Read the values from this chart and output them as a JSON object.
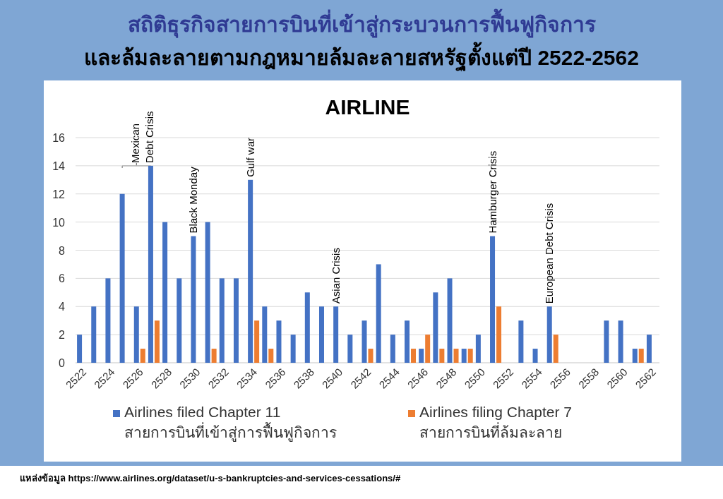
{
  "chart_data": {
    "type": "bar",
    "title": "สถิติธุรกิจสายการบินที่เข้าสู่กระบวนการฟื้นฟูกิจการ",
    "subtitle": "และล้มละลายตามกฎหมายล้มละลายสหรัฐตั้งแต่ปี 2522-2562",
    "categories": [
      "2522",
      null,
      "2524",
      null,
      "2526",
      null,
      "2528",
      null,
      "2530",
      null,
      "2532",
      null,
      "2534",
      null,
      "2536",
      null,
      "2538",
      null,
      "2540",
      null,
      "2542",
      null,
      "2544",
      null,
      "2546",
      null,
      "2548",
      null,
      "2550",
      null,
      "2552",
      null,
      "2554",
      null,
      "2556",
      null,
      "2558",
      null,
      "2560",
      null,
      "2562"
    ],
    "series": [
      {
        "name": "Airlines filed Chapter 11\nสายการบินที่เข้าสู่การฟื้นฟูกิจการ",
        "color": "#4472c4",
        "values": [
          2,
          4,
          6,
          12,
          4,
          14,
          10,
          6,
          9,
          10,
          6,
          6,
          13,
          4,
          3,
          2,
          5,
          4,
          4,
          2,
          3,
          7,
          2,
          3,
          1,
          5,
          6,
          1,
          2,
          9,
          0,
          3,
          1,
          4,
          0,
          0,
          0,
          3,
          3,
          1,
          2
        ]
      },
      {
        "name": "Airlines filing Chapter 7\nสายการบินที่ล้มละลาย",
        "color": "#ed7d31",
        "values": [
          0,
          0,
          0,
          0,
          1,
          3,
          0,
          0,
          0,
          1,
          0,
          0,
          3,
          1,
          0,
          0,
          0,
          0,
          0,
          0,
          1,
          0,
          0,
          1,
          2,
          1,
          1,
          1,
          0,
          4,
          0,
          0,
          0,
          2,
          0,
          0,
          0,
          0,
          0,
          1,
          0
        ]
      }
    ],
    "ylim": [
      0,
      16
    ],
    "yticks": [
      0,
      2,
      4,
      6,
      8,
      10,
      12,
      14,
      16
    ],
    "grid": "y",
    "legend": "bottom",
    "annotations": [
      "AIRLINE",
      "Mexican\nDebt Crisis",
      {
        "text": "Black Monday",
        "x": "2530",
        "y": 9
      },
      {
        "text": "Gulf war",
        "x": "2534",
        "y": 13
      },
      {
        "text": "Asian Crisis",
        "x": "2540",
        "y": 4
      },
      {
        "text": "Hamburger Crisis",
        "y": 9
      },
      {
        "text": "European Debt Crisis",
        "y": 4
      },
      "แหล่งข้อมูล  https://www.airlines.org/dataset/u-s-bankruptcies-and-services-cessations/#"
    ]
  }
}
